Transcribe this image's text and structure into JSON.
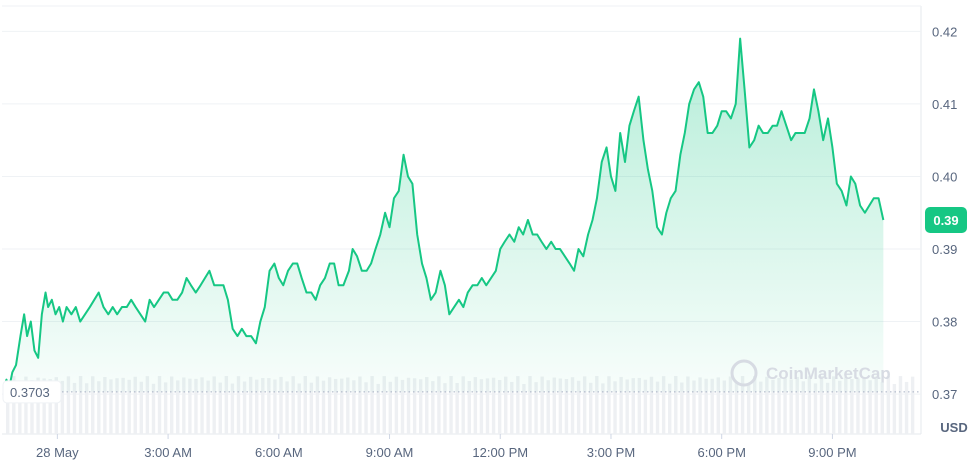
{
  "chart_data": {
    "type": "area",
    "title": "",
    "xlabel": "",
    "ylabel": "",
    "unit_label": "USD",
    "current_value_label": "0.39",
    "baseline_value_label": "0.3703",
    "baseline_value": 0.3703,
    "watermark": "CoinMarketCap",
    "ylim": [
      0.3645,
      0.4235
    ],
    "xlim": [
      -1.5,
      23.4
    ],
    "y_ticks": [
      {
        "value": 0.37,
        "label": "0.37"
      },
      {
        "value": 0.38,
        "label": "0.38"
      },
      {
        "value": 0.39,
        "label": "0.39"
      },
      {
        "value": 0.4,
        "label": "0.40"
      },
      {
        "value": 0.41,
        "label": "0.41"
      },
      {
        "value": 0.42,
        "label": "0.42"
      }
    ],
    "x_ticks": [
      {
        "value": 0,
        "label": "28 May"
      },
      {
        "value": 3,
        "label": "3:00 AM"
      },
      {
        "value": 6,
        "label": "6:00 AM"
      },
      {
        "value": 9,
        "label": "9:00 AM"
      },
      {
        "value": 12,
        "label": "12:00 PM"
      },
      {
        "value": 15,
        "label": "3:00 PM"
      },
      {
        "value": 18,
        "label": "6:00 PM"
      },
      {
        "value": 21,
        "label": "9:00 PM"
      }
    ],
    "grid": true,
    "colors": {
      "line": "#16c784",
      "fill_top": "#16c784",
      "grid": "#eff2f5",
      "volume": "#eef0f3",
      "tick_text": "#58667e",
      "badge": "#16c784"
    },
    "series": [
      {
        "x": [
          -1.45,
          -1.38,
          -1.3,
          -1.22,
          -1.12,
          -1.0,
          -0.9,
          -0.82,
          -0.72,
          -0.62,
          -0.52,
          -0.42,
          -0.32,
          -0.25,
          -0.15,
          -0.05,
          0.05,
          0.15,
          0.25,
          0.38,
          0.5,
          0.62,
          0.75,
          0.88,
          1.0,
          1.12,
          1.25,
          1.38,
          1.5,
          1.62,
          1.75,
          1.88,
          2.0,
          2.12,
          2.25,
          2.38,
          2.5,
          2.62,
          2.75,
          2.88,
          3.0,
          3.12,
          3.25,
          3.38,
          3.5,
          3.62,
          3.75,
          3.88,
          4.0,
          4.12,
          4.25,
          4.38,
          4.5,
          4.62,
          4.75,
          4.88,
          5.0,
          5.12,
          5.25,
          5.38,
          5.5,
          5.62,
          5.75,
          5.88,
          6.0,
          6.12,
          6.25,
          6.38,
          6.5,
          6.62,
          6.75,
          6.88,
          7.0,
          7.12,
          7.25,
          7.38,
          7.5,
          7.62,
          7.75,
          7.9,
          8.0,
          8.12,
          8.25,
          8.38,
          8.5,
          8.62,
          8.75,
          8.88,
          9.0,
          9.12,
          9.25,
          9.38,
          9.5,
          9.62,
          9.75,
          9.88,
          10.0,
          10.12,
          10.25,
          10.38,
          10.5,
          10.62,
          10.75,
          10.88,
          11.0,
          11.12,
          11.25,
          11.38,
          11.5,
          11.62,
          11.75,
          11.88,
          12.0,
          12.12,
          12.25,
          12.38,
          12.5,
          12.62,
          12.75,
          12.88,
          13.0,
          13.12,
          13.25,
          13.38,
          13.5,
          13.62,
          13.75,
          13.88,
          14.0,
          14.12,
          14.25,
          14.38,
          14.5,
          14.62,
          14.75,
          14.88,
          15.0,
          15.12,
          15.25,
          15.38,
          15.5,
          15.62,
          15.75,
          15.88,
          16.0,
          16.12,
          16.25,
          16.38,
          16.5,
          16.62,
          16.75,
          16.88,
          17.0,
          17.12,
          17.25,
          17.38,
          17.5,
          17.62,
          17.75,
          17.88,
          18.0,
          18.12,
          18.25,
          18.38,
          18.5,
          18.62,
          18.75,
          18.88,
          19.0,
          19.12,
          19.25,
          19.38,
          19.5,
          19.62,
          19.75,
          19.88,
          20.0,
          20.12,
          20.25,
          20.38,
          20.5,
          20.62,
          20.75,
          20.88,
          21.0,
          21.12,
          21.25,
          21.38,
          21.5,
          21.62,
          21.75,
          21.88,
          22.0,
          22.12,
          22.25,
          22.38
        ],
        "y": [
          0.3703,
          0.372,
          0.371,
          0.373,
          0.374,
          0.378,
          0.381,
          0.378,
          0.38,
          0.376,
          0.375,
          0.381,
          0.384,
          0.382,
          0.383,
          0.381,
          0.382,
          0.38,
          0.382,
          0.381,
          0.382,
          0.38,
          0.381,
          0.382,
          0.383,
          0.384,
          0.382,
          0.381,
          0.382,
          0.381,
          0.382,
          0.382,
          0.383,
          0.382,
          0.381,
          0.38,
          0.383,
          0.382,
          0.383,
          0.384,
          0.384,
          0.383,
          0.383,
          0.384,
          0.386,
          0.385,
          0.384,
          0.385,
          0.386,
          0.387,
          0.385,
          0.385,
          0.385,
          0.383,
          0.379,
          0.378,
          0.379,
          0.378,
          0.378,
          0.377,
          0.38,
          0.382,
          0.387,
          0.388,
          0.386,
          0.385,
          0.387,
          0.388,
          0.388,
          0.386,
          0.384,
          0.384,
          0.383,
          0.385,
          0.386,
          0.388,
          0.388,
          0.385,
          0.385,
          0.387,
          0.39,
          0.389,
          0.387,
          0.387,
          0.388,
          0.39,
          0.392,
          0.395,
          0.393,
          0.397,
          0.398,
          0.403,
          0.4,
          0.399,
          0.392,
          0.388,
          0.386,
          0.383,
          0.384,
          0.387,
          0.385,
          0.381,
          0.382,
          0.383,
          0.382,
          0.384,
          0.385,
          0.385,
          0.386,
          0.385,
          0.386,
          0.387,
          0.39,
          0.391,
          0.392,
          0.391,
          0.393,
          0.392,
          0.394,
          0.392,
          0.392,
          0.391,
          0.39,
          0.391,
          0.39,
          0.39,
          0.389,
          0.388,
          0.387,
          0.39,
          0.389,
          0.392,
          0.394,
          0.397,
          0.402,
          0.404,
          0.4,
          0.398,
          0.406,
          0.402,
          0.407,
          0.409,
          0.411,
          0.405,
          0.401,
          0.398,
          0.393,
          0.392,
          0.395,
          0.397,
          0.398,
          0.403,
          0.406,
          0.41,
          0.412,
          0.413,
          0.411,
          0.406,
          0.406,
          0.407,
          0.409,
          0.409,
          0.408,
          0.41,
          0.419,
          0.412,
          0.404,
          0.405,
          0.407,
          0.406,
          0.406,
          0.407,
          0.407,
          0.409,
          0.407,
          0.405,
          0.406,
          0.406,
          0.406,
          0.408,
          0.412,
          0.409,
          0.405,
          0.408,
          0.404,
          0.399,
          0.398,
          0.396,
          0.4,
          0.399,
          0.396,
          0.395,
          0.396,
          0.397,
          0.397,
          0.394
        ]
      }
    ]
  }
}
